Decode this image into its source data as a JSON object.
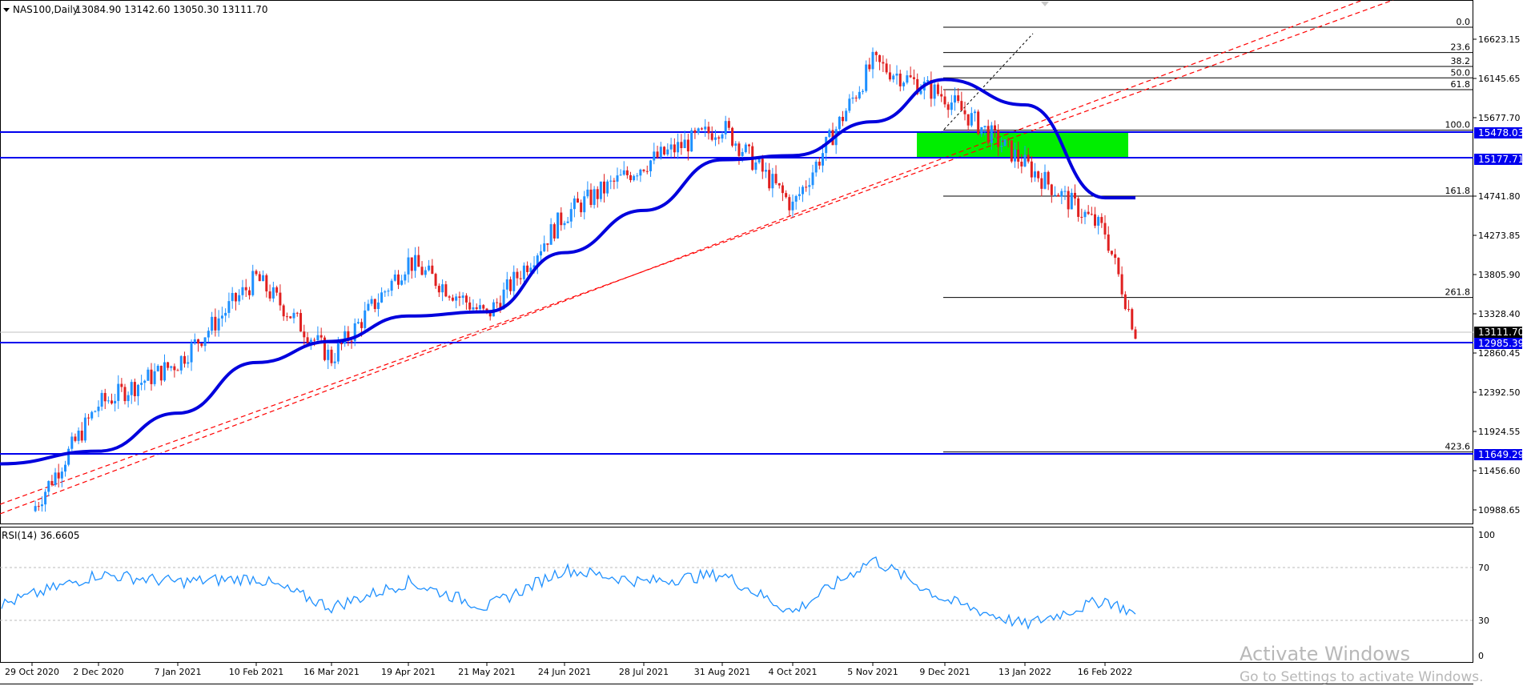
{
  "header": {
    "title": "NAS100,Daily",
    "ohlc": "13084.90 13142.60 13050.30 13111.70"
  },
  "rsi": {
    "label": "RSI(14) 36.6605",
    "levels": [
      "100",
      "70",
      "30",
      "0"
    ]
  },
  "price_labels": {
    "current": "13111.70",
    "h1": "15478.03",
    "h2": "15177.71",
    "h3": "12985.39",
    "h4": "11649.29"
  },
  "y_ticks": [
    "16623.15",
    "16145.65",
    "15677.70",
    "14741.80",
    "14273.85",
    "13805.90",
    "13328.40",
    "12860.45",
    "12392.50",
    "11924.55",
    "11456.60",
    "10988.65"
  ],
  "x_ticks": [
    "29 Oct 2020",
    "2 Dec 2020",
    "7 Jan 2021",
    "10 Feb 2021",
    "16 Mar 2021",
    "19 Apr 2021",
    "21 May 2021",
    "24 Jun 2021",
    "28 Jul 2021",
    "31 Aug 2021",
    "4 Oct 2021",
    "5 Nov 2021",
    "9 Dec 2021",
    "13 Jan 2022",
    "16 Feb 2022"
  ],
  "fib_labels": [
    "0.0",
    "23.6",
    "38.2",
    "50.0",
    "61.8",
    "100.0",
    "161.8",
    "261.8",
    "423.6"
  ],
  "watermark": {
    "line1": "Activate Windows",
    "line2": "Go to Settings to activate Windows."
  },
  "colors": {
    "bull": "#1e90ff",
    "bear": "#e02020",
    "ma": "#0000dd",
    "hline": "#0000ee",
    "zone": "#00ee00",
    "trend": "#ff0000",
    "rsi": "#1e90ff"
  },
  "chart_data": {
    "type": "candlestick",
    "symbol": "NAS100",
    "timeframe": "Daily",
    "ohlc_last": {
      "open": 13084.9,
      "high": 13142.6,
      "low": 13050.3,
      "close": 13111.7
    },
    "y_range": [
      10800,
      17000
    ],
    "horizontal_levels": [
      15478.03,
      15177.71,
      12985.39,
      11649.29
    ],
    "demand_zone": {
      "from": 15177.71,
      "to": 15478.03
    },
    "fibonacci": [
      {
        "level": "0.0",
        "price": 16720
      },
      {
        "level": "23.6",
        "price": 16420
      },
      {
        "level": "38.2",
        "price": 16255
      },
      {
        "level": "50.0",
        "price": 16120
      },
      {
        "level": "61.8",
        "price": 15980
      },
      {
        "level": "100.0",
        "price": 15500
      },
      {
        "level": "161.8",
        "price": 14720
      },
      {
        "level": "261.8",
        "price": 13520
      },
      {
        "level": "423.6",
        "price": 11690
      }
    ],
    "price_path": [
      [
        "29 Oct 2020",
        10990
      ],
      [
        "2 Dec 2020",
        12250
      ],
      [
        "7 Jan 2021",
        12750
      ],
      [
        "10 Feb 2021",
        13750
      ],
      [
        "16 Mar 2021",
        12800
      ],
      [
        "19 Apr 2021",
        13950
      ],
      [
        "21 May 2021",
        13300
      ],
      [
        "24 Jun 2021",
        14500
      ],
      [
        "28 Jul 2021",
        15100
      ],
      [
        "31 Aug 2021",
        15550
      ],
      [
        "4 Oct 2021",
        14600
      ],
      [
        "5 Nov 2021",
        16300
      ],
      [
        "9 Dec 2021",
        15900
      ],
      [
        "13 Jan 2022",
        15100
      ],
      [
        "16 Feb 2022",
        14300
      ],
      [
        "end",
        13111.7
      ]
    ],
    "ma_path": [
      [
        "29 Oct 2020",
        11550
      ],
      [
        "2 Dec 2020",
        11700
      ],
      [
        "7 Jan 2021",
        12150
      ],
      [
        "10 Feb 2021",
        12750
      ],
      [
        "16 Mar 2021",
        13000
      ],
      [
        "19 Apr 2021",
        13300
      ],
      [
        "21 May 2021",
        13350
      ],
      [
        "24 Jun 2021",
        14050
      ],
      [
        "28 Jul 2021",
        14550
      ],
      [
        "31 Aug 2021",
        15150
      ],
      [
        "4 Oct 2021",
        15200
      ],
      [
        "5 Nov 2021",
        15600
      ],
      [
        "9 Dec 2021",
        16100
      ],
      [
        "13 Jan 2022",
        15800
      ],
      [
        "16 Feb 2022",
        14700
      ]
    ],
    "rsi_levels": [
      70,
      30
    ],
    "rsi_path": [
      [
        "29 Oct 2020",
        44
      ],
      [
        "2 Dec 2020",
        68
      ],
      [
        "7 Jan 2021",
        62
      ],
      [
        "10 Feb 2021",
        65
      ],
      [
        "16 Mar 2021",
        42
      ],
      [
        "19 Apr 2021",
        62
      ],
      [
        "21 May 2021",
        42
      ],
      [
        "24 Jun 2021",
        72
      ],
      [
        "28 Jul 2021",
        62
      ],
      [
        "31 Aug 2021",
        68
      ],
      [
        "4 Oct 2021",
        38
      ],
      [
        "5 Nov 2021",
        80
      ],
      [
        "9 Dec 2021",
        48
      ],
      [
        "13 Jan 2022",
        28
      ],
      [
        "16 Feb 2022",
        48
      ],
      [
        "end",
        36.66
      ]
    ]
  }
}
